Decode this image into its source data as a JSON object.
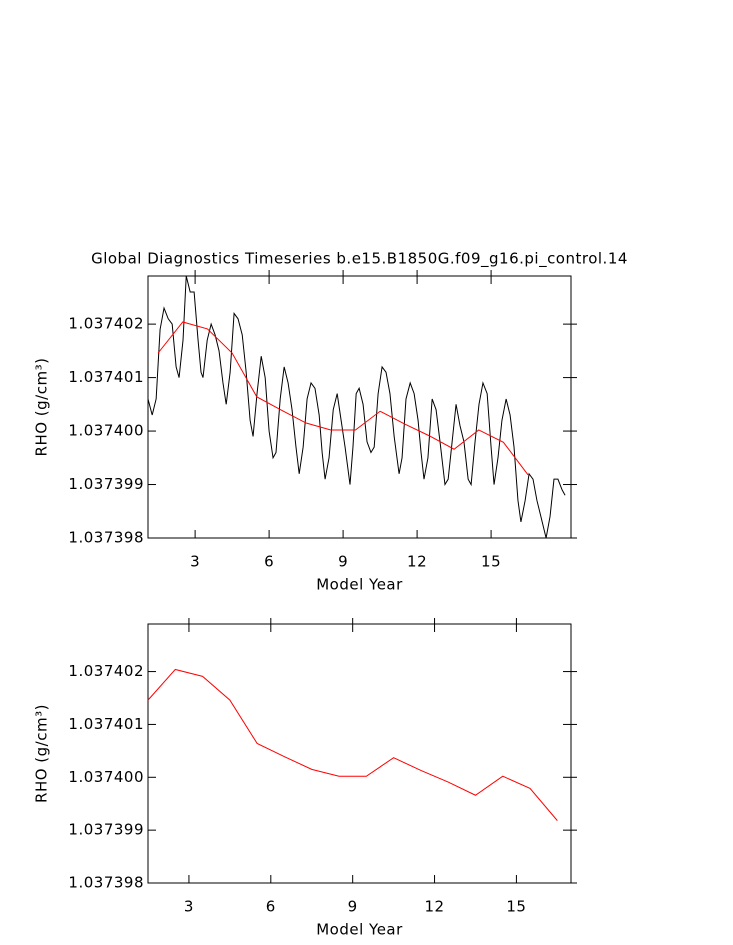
{
  "chart_data": [
    {
      "type": "line",
      "title": "Global Diagnostics Timeseries b.e15.B1850G.f09_g16.pi_control.14",
      "x_label": "Model Year",
      "y_label": "RHO (g/cm³)",
      "xlim": [
        1.09,
        18.24
      ],
      "xticks": [
        3,
        6,
        9,
        12,
        15
      ],
      "ylim": [
        1.037398,
        1.0374029
      ],
      "yticks": [
        1.037398,
        1.037399,
        {
          "value": 1.0374,
          "label": "1.037400"
        },
        1.037401,
        1.037402
      ],
      "series": [
        {
          "color": "#000000",
          "x": [
            1.09,
            1.26,
            1.42,
            1.58,
            1.74,
            1.91,
            2.07,
            2.23,
            2.35,
            2.51,
            2.64,
            2.8,
            2.96,
            3.12,
            3.24,
            3.32,
            3.49,
            3.65,
            3.81,
            3.97,
            4.13,
            4.26,
            4.42,
            4.58,
            4.74,
            4.91,
            5.07,
            5.23,
            5.35,
            5.51,
            5.68,
            5.84,
            6.0,
            6.16,
            6.28,
            6.45,
            6.61,
            6.77,
            6.93,
            7.09,
            7.22,
            7.38,
            7.54,
            7.7,
            7.86,
            8.03,
            8.15,
            8.27,
            8.43,
            8.6,
            8.76,
            8.92,
            9.08,
            9.28,
            9.4,
            9.53,
            9.65,
            9.81,
            9.97,
            10.13,
            10.26,
            10.42,
            10.58,
            10.74,
            10.9,
            11.07,
            11.27,
            11.39,
            11.55,
            11.72,
            11.88,
            12.04,
            12.16,
            12.28,
            12.44,
            12.61,
            12.77,
            12.93,
            13.13,
            13.26,
            13.42,
            13.58,
            13.74,
            13.9,
            14.07,
            14.19,
            14.35,
            14.51,
            14.67,
            14.84,
            15.0,
            15.12,
            15.28,
            15.44,
            15.61,
            15.77,
            15.93,
            16.09,
            16.21,
            16.38,
            16.54,
            16.7,
            16.86,
            17.02,
            17.23,
            17.39,
            17.55,
            17.71,
            17.88,
            18.0
          ],
          "values": [
            1.0374006,
            1.0374003,
            1.0374006,
            1.0374019,
            1.0374023,
            1.0374021,
            1.037402,
            1.0374012,
            1.037401,
            1.0374017,
            1.0374029,
            1.0374026,
            1.0374026,
            1.0374017,
            1.0374011,
            1.037401,
            1.0374017,
            1.037402,
            1.0374018,
            1.0374015,
            1.0374009,
            1.0374005,
            1.0374011,
            1.0374022,
            1.0374021,
            1.0374018,
            1.0374011,
            1.0374002,
            1.0373999,
            1.0374007,
            1.0374014,
            1.037401,
            1.0374,
            1.0373995,
            1.0373996,
            1.0374006,
            1.0374012,
            1.0374009,
            1.0374004,
            1.0373997,
            1.0373992,
            1.0373997,
            1.0374006,
            1.0374009,
            1.0374008,
            1.0374003,
            1.0373996,
            1.0373991,
            1.0373995,
            1.0374004,
            1.0374007,
            1.0374002,
            1.0373997,
            1.037399,
            1.0373997,
            1.0374007,
            1.0374008,
            1.0374005,
            1.0373998,
            1.0373996,
            1.0373997,
            1.0374007,
            1.0374012,
            1.0374011,
            1.0374007,
            1.0373999,
            1.0373992,
            1.0373995,
            1.0374006,
            1.0374009,
            1.0374007,
            1.0374002,
            1.0373996,
            1.0373991,
            1.0373995,
            1.0374006,
            1.0374004,
            1.0373998,
            1.037399,
            1.0373991,
            1.0373998,
            1.0374005,
            1.0374001,
            1.0373998,
            1.0373991,
            1.037399,
            1.0373998,
            1.0374005,
            1.0374009,
            1.0374007,
            1.0373997,
            1.037399,
            1.0373995,
            1.0374002,
            1.0374006,
            1.0374003,
            1.0373997,
            1.0373987,
            1.0373983,
            1.0373987,
            1.0373992,
            1.0373991,
            1.0373987,
            1.0373984,
            1.037398,
            1.0373984,
            1.0373991,
            1.0373991,
            1.0373989,
            1.0373988
          ]
        },
        {
          "color": "#ff0000",
          "x": [
            1.5,
            2.5,
            3.5,
            4.5,
            5.5,
            6.5,
            7.5,
            8.5,
            9.5,
            10.5,
            11.5,
            12.5,
            13.5,
            14.5,
            15.5,
            16.5
          ],
          "values": [
            1.03740146,
            1.03740204,
            1.03740191,
            1.03740146,
            1.03740064,
            1.03740039,
            1.03740015,
            1.03740002,
            1.03740002,
            1.03740037,
            1.03740013,
            1.03739991,
            1.03739966,
            1.03740002,
            1.03739979,
            1.03739918
          ]
        }
      ]
    },
    {
      "type": "line",
      "x_label": "Model Year",
      "y_label": "RHO (g/cm³)",
      "xlim": [
        1.5,
        17
      ],
      "xticks": [
        3,
        6,
        9,
        12,
        15
      ],
      "ylim": [
        1.037398,
        1.0374029
      ],
      "yticks": [
        1.037398,
        1.037399,
        {
          "value": 1.0374,
          "label": "1.037400"
        },
        1.037401,
        1.037402
      ],
      "series": [
        {
          "color": "#ff0000",
          "x": [
            1.5,
            2.5,
            3.5,
            4.5,
            5.5,
            6.5,
            7.5,
            8.5,
            9.5,
            10.5,
            11.5,
            12.5,
            13.5,
            14.5,
            15.5,
            16.5
          ],
          "values": [
            1.03740146,
            1.03740204,
            1.03740191,
            1.03740146,
            1.03740064,
            1.03740039,
            1.03740015,
            1.03740002,
            1.03740002,
            1.03740037,
            1.03740013,
            1.03739991,
            1.03739966,
            1.03740002,
            1.03739979,
            1.03739918
          ]
        }
      ]
    }
  ]
}
